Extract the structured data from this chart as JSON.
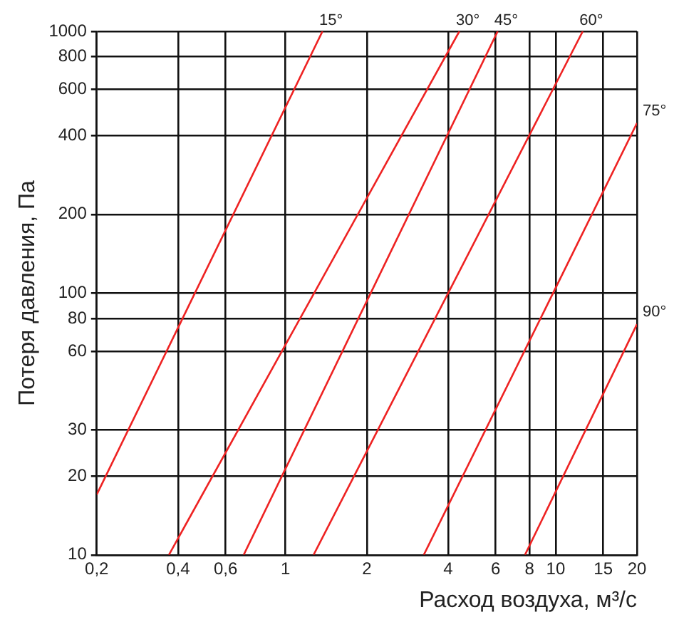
{
  "chart_data": {
    "type": "line",
    "xlabel": "Расход воздуха, м³/с",
    "ylabel": "Потеря давления, Па",
    "log": "xy",
    "grid": true,
    "legend": false,
    "marker": "none",
    "line_style": "solid",
    "xlim": [
      0.2,
      20
    ],
    "ylim": [
      10,
      1000
    ],
    "xticks": [
      {
        "value": 0.2,
        "label": "0,2"
      },
      {
        "value": 0.4,
        "label": "0,4"
      },
      {
        "value": 0.6,
        "label": "0,6"
      },
      1,
      2,
      4,
      6,
      8,
      10,
      15,
      20
    ],
    "yticks": [
      10,
      20,
      30,
      60,
      80,
      100,
      200,
      400,
      600,
      800,
      1000
    ],
    "series": [
      {
        "name": "15°",
        "color": "#ee2222",
        "x": [
          0.2,
          1.37
        ],
        "values": [
          17,
          1000
        ]
      },
      {
        "name": "30°",
        "color": "#ee2222",
        "x": [
          0.37,
          4.4
        ],
        "values": [
          10,
          1000
        ]
      },
      {
        "name": "45°",
        "color": "#ee2222",
        "x": [
          0.7,
          6.1
        ],
        "values": [
          10,
          1000
        ]
      },
      {
        "name": "60°",
        "color": "#ee2222",
        "x": [
          1.27,
          12.6
        ],
        "values": [
          10,
          1000
        ]
      },
      {
        "name": "75°",
        "color": "#ee2222",
        "x": [
          3.25,
          20
        ],
        "values": [
          10,
          446
        ]
      },
      {
        "name": "90°",
        "color": "#ee2222",
        "x": [
          7.7,
          20
        ],
        "values": [
          10,
          76
        ]
      }
    ]
  }
}
